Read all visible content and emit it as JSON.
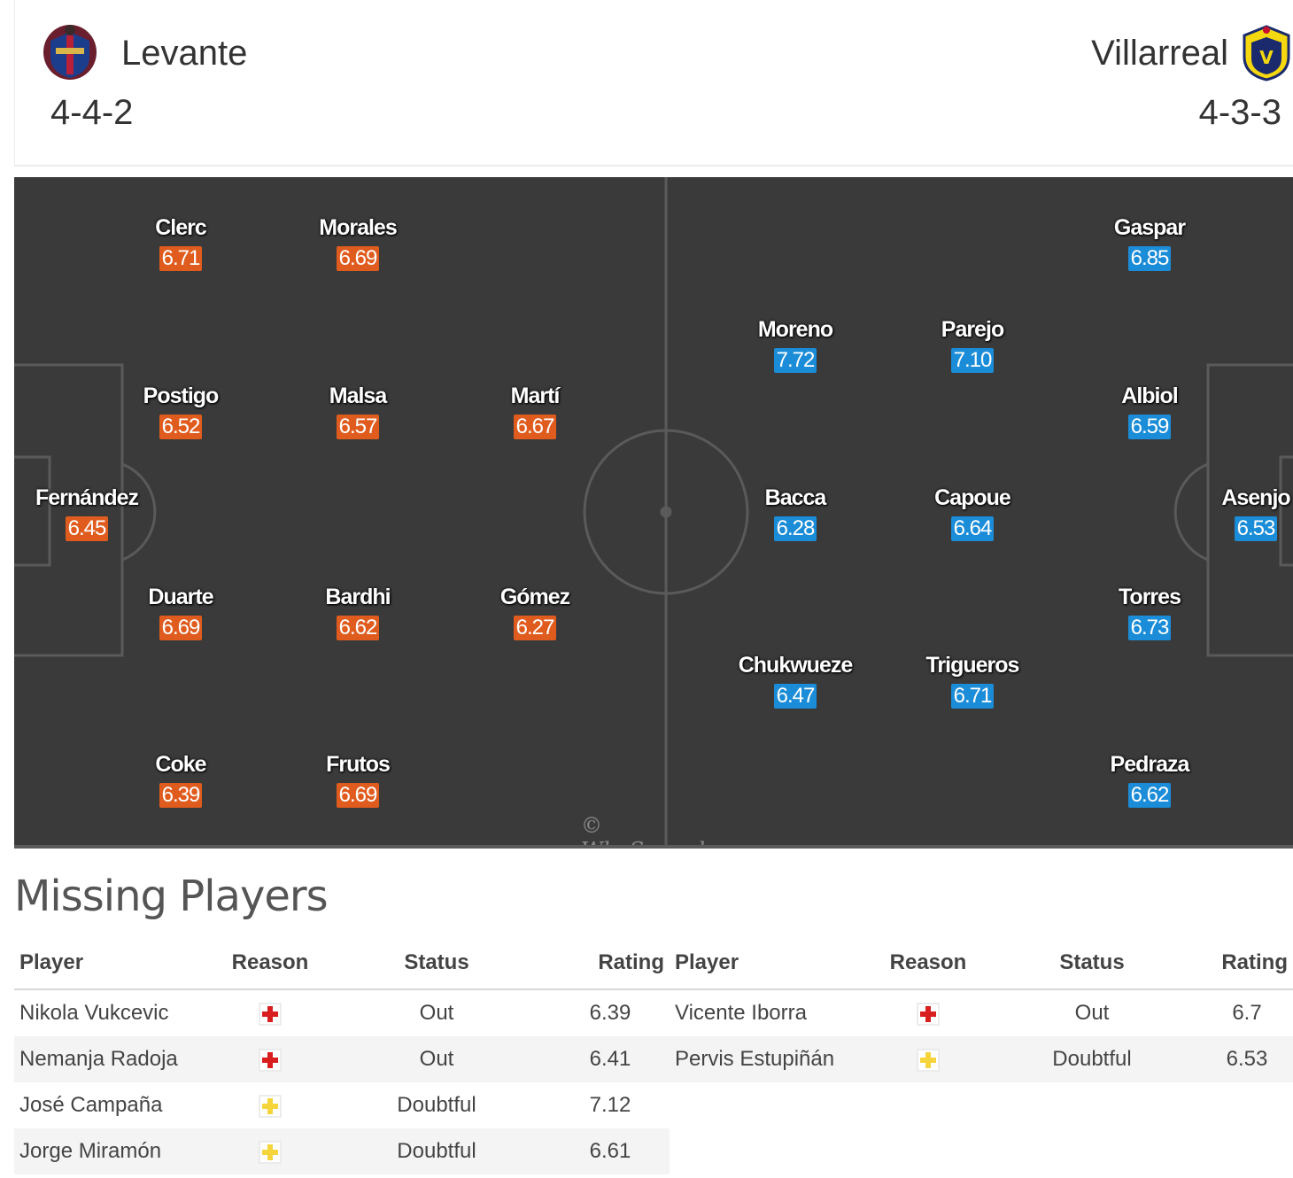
{
  "home": {
    "team_name": "Levante",
    "formation": "4-4-2",
    "crest_icon": "levante-crest-icon",
    "players": [
      {
        "name": "Fernández",
        "rating": "6.45"
      },
      {
        "name": "Clerc",
        "rating": "6.71"
      },
      {
        "name": "Postigo",
        "rating": "6.52"
      },
      {
        "name": "Duarte",
        "rating": "6.69"
      },
      {
        "name": "Coke",
        "rating": "6.39"
      },
      {
        "name": "Morales",
        "rating": "6.69"
      },
      {
        "name": "Malsa",
        "rating": "6.57"
      },
      {
        "name": "Bardhi",
        "rating": "6.62"
      },
      {
        "name": "Frutos",
        "rating": "6.69"
      },
      {
        "name": "Martí",
        "rating": "6.67"
      },
      {
        "name": "Gómez",
        "rating": "6.27"
      }
    ]
  },
  "away": {
    "team_name": "Villarreal",
    "formation": "4-3-3",
    "crest_icon": "villarreal-crest-icon",
    "players": [
      {
        "name": "Asenjo",
        "rating": "6.53"
      },
      {
        "name": "Gaspar",
        "rating": "6.85"
      },
      {
        "name": "Albiol",
        "rating": "6.59"
      },
      {
        "name": "Torres",
        "rating": "6.73"
      },
      {
        "name": "Pedraza",
        "rating": "6.62"
      },
      {
        "name": "Parejo",
        "rating": "7.10"
      },
      {
        "name": "Capoue",
        "rating": "6.64"
      },
      {
        "name": "Trigueros",
        "rating": "6.71"
      },
      {
        "name": "Moreno",
        "rating": "7.72"
      },
      {
        "name": "Bacca",
        "rating": "6.28"
      },
      {
        "name": "Chukwueze",
        "rating": "6.47"
      }
    ]
  },
  "watermark": "© WhoScored.com",
  "colors": {
    "home_rating": "#e05c1e",
    "away_rating": "#1a8cd8",
    "pitch": "#3a3a3a",
    "missing_rating": "#e0461e"
  },
  "missing": {
    "title": "Missing Players",
    "headers": {
      "player": "Player",
      "reason": "Reason",
      "status": "Status",
      "rating": "Rating"
    },
    "home": [
      {
        "player": "Nikola Vukcevic",
        "reason_icon": "injury-cross-icon",
        "status": "Out",
        "rating": "6.39"
      },
      {
        "player": "Nemanja Radoja",
        "reason_icon": "injury-cross-icon",
        "status": "Out",
        "rating": "6.41"
      },
      {
        "player": "José Campaña",
        "reason_icon": "doubtful-cross-icon",
        "status": "Doubtful",
        "rating": "7.12"
      },
      {
        "player": "Jorge Miramón",
        "reason_icon": "doubtful-cross-icon",
        "status": "Doubtful",
        "rating": "6.61"
      }
    ],
    "away": [
      {
        "player": "Vicente Iborra",
        "reason_icon": "injury-cross-icon",
        "status": "Out",
        "rating": "6.7"
      },
      {
        "player": "Pervis Estupiñán",
        "reason_icon": "doubtful-cross-icon",
        "status": "Doubtful",
        "rating": "6.53"
      }
    ]
  }
}
